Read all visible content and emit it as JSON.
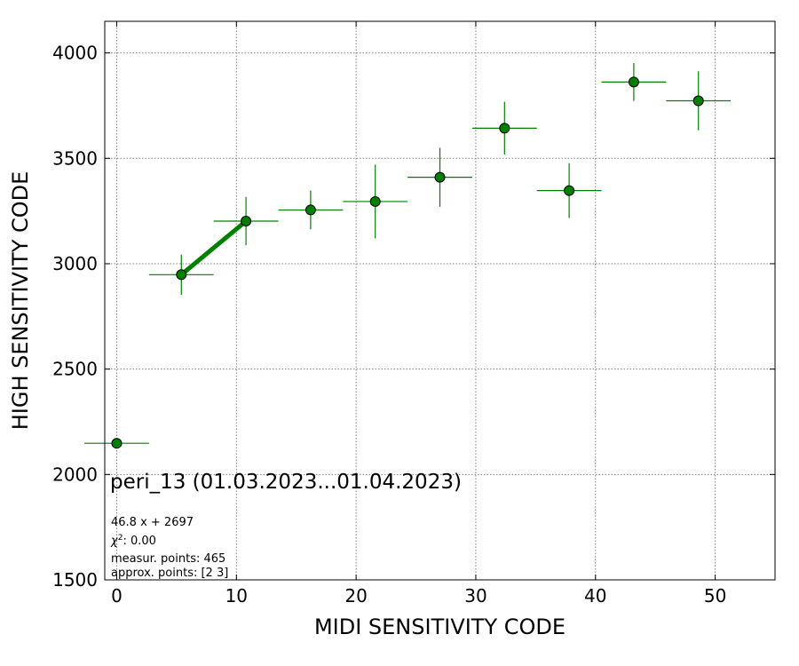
{
  "chart_data": {
    "type": "scatter",
    "title": "",
    "xlabel": "MIDI SENSITIVITY CODE",
    "ylabel": "HIGH SENSITIVITY CODE",
    "xlim": [
      -1,
      55
    ],
    "ylim": [
      1500,
      4150
    ],
    "xticks": [
      0,
      10,
      20,
      30,
      40,
      50
    ],
    "yticks": [
      1500,
      2000,
      2500,
      3000,
      3500,
      4000
    ],
    "grid": true,
    "marker_color": "#008000",
    "errorbar_color": "#008000",
    "fit_color": "#008000",
    "series": [
      {
        "points": [
          {
            "x": 0.0,
            "y": 2148,
            "xerr": 2.7,
            "yerr": 0
          },
          {
            "x": 5.4,
            "y": 2948,
            "xerr": 2.7,
            "yerr": 95
          },
          {
            "x": 10.8,
            "y": 3202,
            "xerr": 2.7,
            "yerr": 115
          },
          {
            "x": 16.2,
            "y": 3255,
            "xerr": 2.7,
            "yerr": 92
          },
          {
            "x": 21.6,
            "y": 3295,
            "xerr": 2.7,
            "yerr": 175
          },
          {
            "x": 27.0,
            "y": 3410,
            "xerr": 2.7,
            "yerr": 140
          },
          {
            "x": 32.4,
            "y": 3643,
            "xerr": 2.7,
            "yerr": 125
          },
          {
            "x": 37.8,
            "y": 3347,
            "xerr": 2.7,
            "yerr": 130
          },
          {
            "x": 43.2,
            "y": 3862,
            "xerr": 2.7,
            "yerr": 90
          },
          {
            "x": 48.6,
            "y": 3773,
            "xerr": 2.7,
            "yerr": 140
          }
        ]
      }
    ],
    "fit": {
      "x": [
        5.4,
        10.8
      ],
      "y": [
        2948,
        3202
      ]
    },
    "annotations": {
      "main": "peri_13 (01.03.2023...01.04.2023)",
      "fit_eq": "46.8 x + 2697",
      "chi2_value": ": 0.00",
      "measur_points": "measur. points: 465",
      "approx_points": "approx. points: [2 3]"
    }
  }
}
